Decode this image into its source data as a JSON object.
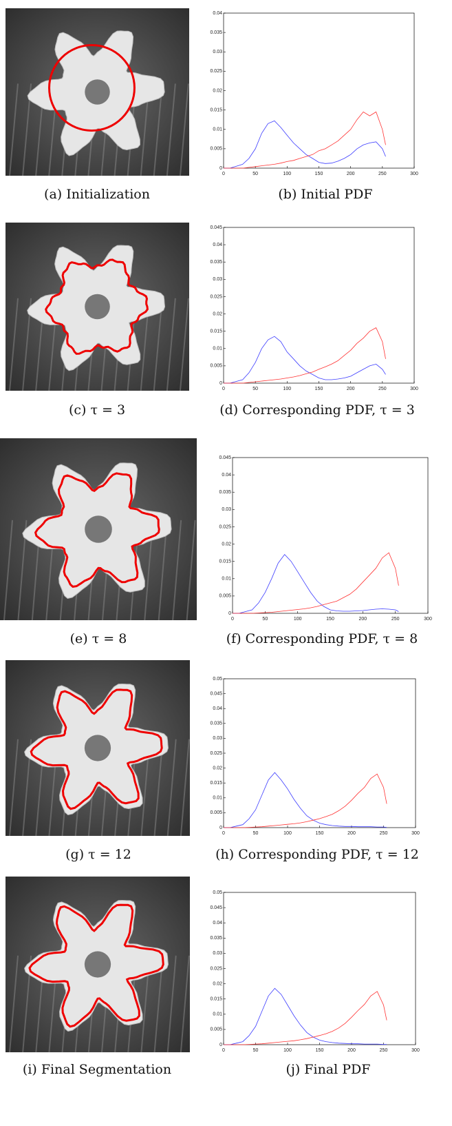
{
  "captions": [
    "(a) Initialization",
    "(b) Initial PDF",
    "(c) τ = 3",
    "(d) Corresponding PDF, τ = 3",
    "(e) τ = 8",
    "(f) Corresponding PDF, τ = 8",
    "(g) τ = 12",
    "(h) Corresponding PDF, τ = 12",
    "(i) Final Segmentation",
    "(j) Final PDF"
  ],
  "chart_data": [
    {
      "type": "line",
      "x": [
        0,
        10,
        20,
        30,
        40,
        50,
        60,
        70,
        80,
        90,
        100,
        110,
        120,
        130,
        140,
        150,
        160,
        170,
        180,
        190,
        200,
        210,
        220,
        230,
        240,
        250,
        255
      ],
      "xlim": [
        0,
        300
      ],
      "xticks": [
        0,
        50,
        100,
        150,
        200,
        250,
        300
      ],
      "ylim": [
        0,
        0.04
      ],
      "yticks": [
        0,
        0.005,
        0.01,
        0.015,
        0.02,
        0.025,
        0.03,
        0.035,
        0.04
      ],
      "series": [
        {
          "color": "#3b3bff",
          "values": [
            0,
            0,
            0.0005,
            0.001,
            0.0025,
            0.005,
            0.009,
            0.0115,
            0.0122,
            0.0105,
            0.0085,
            0.0065,
            0.005,
            0.0035,
            0.0025,
            0.0015,
            0.0012,
            0.0013,
            0.0018,
            0.0025,
            0.0035,
            0.005,
            0.006,
            0.0065,
            0.0068,
            0.005,
            0.003
          ]
        },
        {
          "color": "#ff3030",
          "values": [
            0,
            0,
            0,
            0,
            0.0002,
            0.0004,
            0.0006,
            0.0008,
            0.001,
            0.0013,
            0.0017,
            0.002,
            0.0025,
            0.003,
            0.0035,
            0.0045,
            0.005,
            0.006,
            0.007,
            0.0085,
            0.01,
            0.0125,
            0.0145,
            0.0135,
            0.0145,
            0.01,
            0.006
          ]
        }
      ]
    },
    {
      "type": "line",
      "x": [
        0,
        10,
        20,
        30,
        40,
        50,
        60,
        70,
        80,
        90,
        100,
        110,
        120,
        130,
        140,
        150,
        160,
        170,
        180,
        190,
        200,
        210,
        220,
        230,
        240,
        250,
        255
      ],
      "xlim": [
        0,
        300
      ],
      "xticks": [
        0,
        50,
        100,
        150,
        200,
        250,
        300
      ],
      "ylim": [
        0,
        0.045
      ],
      "yticks": [
        0,
        0.005,
        0.01,
        0.015,
        0.02,
        0.025,
        0.03,
        0.035,
        0.04,
        0.045
      ],
      "series": [
        {
          "color": "#3b3bff",
          "values": [
            0,
            0,
            0.0005,
            0.001,
            0.003,
            0.006,
            0.01,
            0.0125,
            0.0135,
            0.012,
            0.009,
            0.007,
            0.005,
            0.0035,
            0.0025,
            0.0015,
            0.001,
            0.001,
            0.0012,
            0.0015,
            0.002,
            0.003,
            0.004,
            0.005,
            0.0055,
            0.004,
            0.0025
          ]
        },
        {
          "color": "#ff3030",
          "values": [
            0,
            0,
            0,
            0,
            0.0002,
            0.0004,
            0.0006,
            0.0008,
            0.001,
            0.0012,
            0.0015,
            0.0018,
            0.0022,
            0.0027,
            0.0032,
            0.004,
            0.0047,
            0.0055,
            0.0065,
            0.008,
            0.0095,
            0.0115,
            0.013,
            0.015,
            0.016,
            0.012,
            0.007
          ]
        }
      ]
    },
    {
      "type": "line",
      "x": [
        0,
        10,
        20,
        30,
        40,
        50,
        60,
        70,
        80,
        90,
        100,
        110,
        120,
        130,
        140,
        150,
        160,
        170,
        180,
        190,
        200,
        210,
        220,
        230,
        240,
        250,
        255
      ],
      "xlim": [
        0,
        300
      ],
      "xticks": [
        0,
        50,
        100,
        150,
        200,
        250,
        300
      ],
      "ylim": [
        0,
        0.045
      ],
      "yticks": [
        0,
        0.005,
        0.01,
        0.015,
        0.02,
        0.025,
        0.03,
        0.035,
        0.04,
        0.045
      ],
      "series": [
        {
          "color": "#3b3bff",
          "values": [
            0,
            0,
            0.0005,
            0.001,
            0.003,
            0.006,
            0.01,
            0.0145,
            0.017,
            0.015,
            0.012,
            0.009,
            0.006,
            0.0035,
            0.002,
            0.001,
            0.0007,
            0.0006,
            0.0006,
            0.0007,
            0.0008,
            0.001,
            0.0012,
            0.0013,
            0.0012,
            0.001,
            0.0005
          ]
        },
        {
          "color": "#ff3030",
          "values": [
            0,
            0,
            0,
            0,
            0.0001,
            0.0002,
            0.0003,
            0.0005,
            0.0007,
            0.0009,
            0.0011,
            0.0013,
            0.0016,
            0.002,
            0.0025,
            0.003,
            0.0035,
            0.0045,
            0.0055,
            0.007,
            0.009,
            0.011,
            0.013,
            0.016,
            0.0175,
            0.013,
            0.008
          ]
        }
      ]
    },
    {
      "type": "line",
      "x": [
        0,
        10,
        20,
        30,
        40,
        50,
        60,
        70,
        80,
        90,
        100,
        110,
        120,
        130,
        140,
        150,
        160,
        170,
        180,
        190,
        200,
        210,
        220,
        230,
        240,
        250,
        255
      ],
      "xlim": [
        0,
        300
      ],
      "xticks": [
        0,
        50,
        100,
        150,
        200,
        250,
        300
      ],
      "ylim": [
        0,
        0.05
      ],
      "yticks": [
        0,
        0.005,
        0.01,
        0.015,
        0.02,
        0.025,
        0.03,
        0.035,
        0.04,
        0.045,
        0.05
      ],
      "series": [
        {
          "color": "#3b3bff",
          "values": [
            0,
            0,
            0.0005,
            0.001,
            0.003,
            0.006,
            0.011,
            0.016,
            0.0185,
            0.016,
            0.013,
            0.0095,
            0.0065,
            0.004,
            0.0025,
            0.0015,
            0.001,
            0.0007,
            0.0005,
            0.0004,
            0.0004,
            0.0003,
            0.0003,
            0.0003,
            0.0002,
            0.0002,
            0.0001
          ]
        },
        {
          "color": "#ff3030",
          "values": [
            0,
            0,
            0,
            0,
            0.0001,
            0.0002,
            0.0003,
            0.0005,
            0.0007,
            0.0009,
            0.0011,
            0.0013,
            0.0016,
            0.002,
            0.0025,
            0.003,
            0.0037,
            0.0045,
            0.0057,
            0.0072,
            0.0092,
            0.0115,
            0.0135,
            0.0165,
            0.018,
            0.0135,
            0.008
          ]
        }
      ]
    },
    {
      "type": "line",
      "x": [
        0,
        10,
        20,
        30,
        40,
        50,
        60,
        70,
        80,
        90,
        100,
        110,
        120,
        130,
        140,
        150,
        160,
        170,
        180,
        190,
        200,
        210,
        220,
        230,
        240,
        250,
        255
      ],
      "xlim": [
        0,
        300
      ],
      "xticks": [
        0,
        50,
        100,
        150,
        200,
        250,
        300
      ],
      "ylim": [
        0,
        0.05
      ],
      "yticks": [
        0,
        0.005,
        0.01,
        0.015,
        0.02,
        0.025,
        0.03,
        0.035,
        0.04,
        0.045,
        0.05
      ],
      "series": [
        {
          "color": "#3b3bff",
          "values": [
            0,
            0,
            0.0005,
            0.001,
            0.003,
            0.006,
            0.011,
            0.016,
            0.0185,
            0.0165,
            0.013,
            0.0095,
            0.0065,
            0.004,
            0.0025,
            0.0015,
            0.001,
            0.0007,
            0.0005,
            0.0004,
            0.0003,
            0.0003,
            0.0002,
            0.0002,
            0.0002,
            0.0001,
            0.0001
          ]
        },
        {
          "color": "#ff3030",
          "values": [
            0,
            0,
            0,
            0,
            0.0001,
            0.0002,
            0.0003,
            0.0005,
            0.0007,
            0.0009,
            0.0011,
            0.0013,
            0.0016,
            0.002,
            0.0025,
            0.003,
            0.0036,
            0.0044,
            0.0055,
            0.007,
            0.009,
            0.0112,
            0.0132,
            0.016,
            0.0175,
            0.013,
            0.008
          ]
        }
      ]
    }
  ]
}
